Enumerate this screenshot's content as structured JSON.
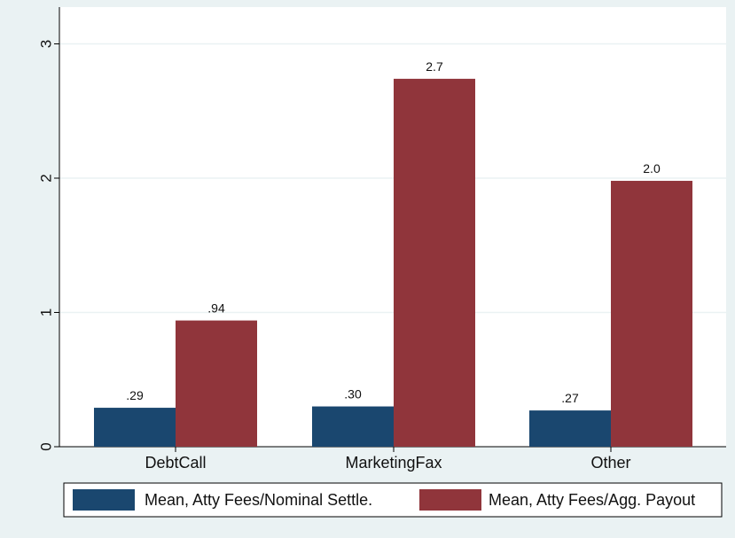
{
  "chart_data": {
    "type": "bar",
    "categories": [
      "DebtCall",
      "MarketingFax",
      "Other"
    ],
    "series": [
      {
        "name": "Mean, Atty Fees/Nominal Settle.",
        "values": [
          0.29,
          0.3,
          0.27
        ],
        "labels": [
          ".29",
          ".30",
          ".27"
        ],
        "color": "#1a476f"
      },
      {
        "name": "Mean, Atty Fees/Agg. Payout",
        "values": [
          0.94,
          2.74,
          1.98
        ],
        "labels": [
          ".94",
          "2.7",
          "2.0"
        ],
        "color": "#90353b"
      }
    ],
    "yticks": [
      0,
      1,
      2,
      3
    ],
    "ylim": [
      0,
      3.15
    ],
    "title": "",
    "xlabel": "",
    "ylabel": "",
    "grid": "horizontal",
    "legend_position": "bottom",
    "colors": {
      "background": "#eaf2f3",
      "plot_background": "#ffffff",
      "grid": "#eaf2f3"
    }
  }
}
